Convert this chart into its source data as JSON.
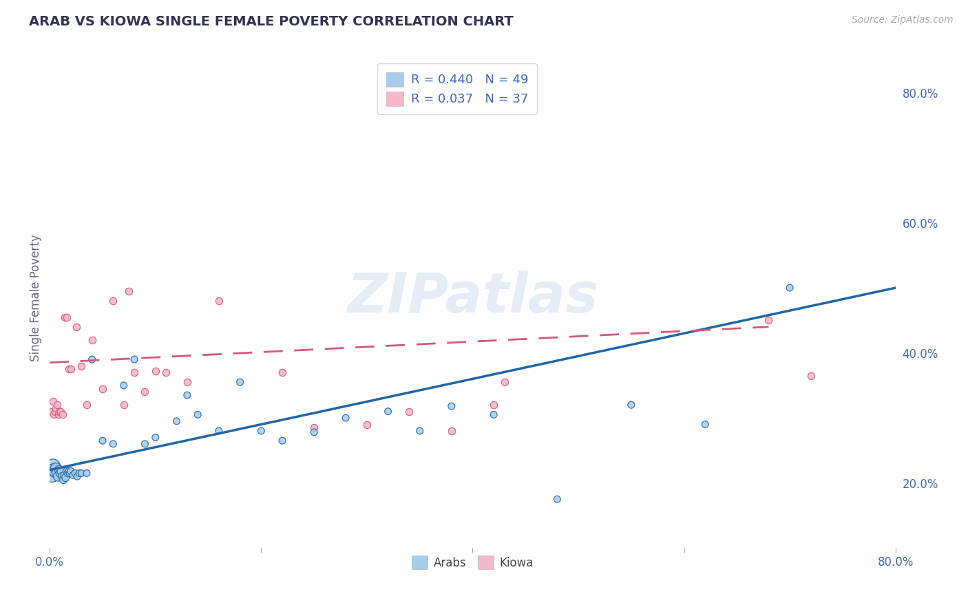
{
  "title": "ARAB VS KIOWA SINGLE FEMALE POVERTY CORRELATION CHART",
  "source": "Source: ZipAtlas.com",
  "ylabel": "Single Female Poverty",
  "xmin": 0.0,
  "xmax": 0.8,
  "ymin": 0.1,
  "ymax": 0.87,
  "watermark": "ZIPatlas",
  "legend_R_arab": "R = 0.440",
  "legend_N_arab": "N = 49",
  "legend_R_kiowa": "R = 0.037",
  "legend_N_kiowa": "N = 37",
  "arab_color": "#a8ccec",
  "kiowa_color": "#f5b8c8",
  "arab_line_color": "#2066a8",
  "kiowa_line_color": "#d45878",
  "background_color": "#ffffff",
  "grid_color": "#c8d4e8",
  "title_color": "#333355",
  "axis_label_color": "#4466bb",
  "arab_points_x": [
    0.002,
    0.003,
    0.004,
    0.005,
    0.006,
    0.007,
    0.008,
    0.009,
    0.01,
    0.011,
    0.012,
    0.013,
    0.014,
    0.015,
    0.016,
    0.017,
    0.018,
    0.019,
    0.02,
    0.022,
    0.024,
    0.026,
    0.028,
    0.03,
    0.035,
    0.04,
    0.05,
    0.06,
    0.07,
    0.08,
    0.09,
    0.1,
    0.12,
    0.13,
    0.14,
    0.16,
    0.18,
    0.2,
    0.22,
    0.25,
    0.28,
    0.32,
    0.35,
    0.38,
    0.42,
    0.48,
    0.55,
    0.62,
    0.7
  ],
  "arab_points_y": [
    0.215,
    0.225,
    0.22,
    0.218,
    0.222,
    0.215,
    0.21,
    0.22,
    0.215,
    0.218,
    0.21,
    0.205,
    0.212,
    0.208,
    0.218,
    0.215,
    0.218,
    0.215,
    0.218,
    0.212,
    0.215,
    0.21,
    0.215,
    0.215,
    0.215,
    0.39,
    0.265,
    0.26,
    0.35,
    0.39,
    0.26,
    0.27,
    0.295,
    0.335,
    0.305,
    0.28,
    0.355,
    0.28,
    0.265,
    0.278,
    0.3,
    0.31,
    0.28,
    0.318,
    0.305,
    0.175,
    0.32,
    0.29,
    0.5
  ],
  "arab_sizes": [
    350,
    250,
    180,
    160,
    140,
    120,
    100,
    90,
    80,
    75,
    70,
    68,
    65,
    62,
    60,
    58,
    56,
    55,
    54,
    52,
    50,
    50,
    50,
    50,
    50,
    50,
    50,
    50,
    50,
    50,
    50,
    50,
    50,
    50,
    50,
    50,
    50,
    50,
    50,
    50,
    50,
    50,
    50,
    50,
    50,
    50,
    50,
    50,
    50
  ],
  "kiowa_points_x": [
    0.002,
    0.003,
    0.004,
    0.005,
    0.006,
    0.007,
    0.008,
    0.009,
    0.01,
    0.012,
    0.014,
    0.016,
    0.018,
    0.02,
    0.025,
    0.03,
    0.035,
    0.04,
    0.05,
    0.06,
    0.07,
    0.075,
    0.08,
    0.09,
    0.1,
    0.11,
    0.13,
    0.16,
    0.22,
    0.25,
    0.3,
    0.34,
    0.38,
    0.42,
    0.43,
    0.68,
    0.72
  ],
  "kiowa_points_y": [
    0.31,
    0.325,
    0.305,
    0.31,
    0.315,
    0.32,
    0.305,
    0.31,
    0.31,
    0.305,
    0.455,
    0.455,
    0.375,
    0.375,
    0.44,
    0.38,
    0.32,
    0.42,
    0.345,
    0.48,
    0.32,
    0.495,
    0.37,
    0.34,
    0.372,
    0.37,
    0.355,
    0.48,
    0.37,
    0.285,
    0.29,
    0.31,
    0.28,
    0.32,
    0.355,
    0.45,
    0.365
  ],
  "arab_trend_x": [
    0.0,
    0.8
  ],
  "arab_trend_y": [
    0.22,
    0.5
  ],
  "kiowa_trend_x": [
    0.0,
    0.68
  ],
  "kiowa_trend_y": [
    0.385,
    0.44
  ],
  "xticks": [
    0.0,
    0.2,
    0.4,
    0.6,
    0.8
  ],
  "xtick_labels": [
    "0.0%",
    "",
    "",
    "",
    "80.0%"
  ],
  "yticks_right": [
    0.2,
    0.4,
    0.6,
    0.8
  ],
  "ytick_labels_right": [
    "20.0%",
    "40.0%",
    "60.0%",
    "80.0%"
  ]
}
